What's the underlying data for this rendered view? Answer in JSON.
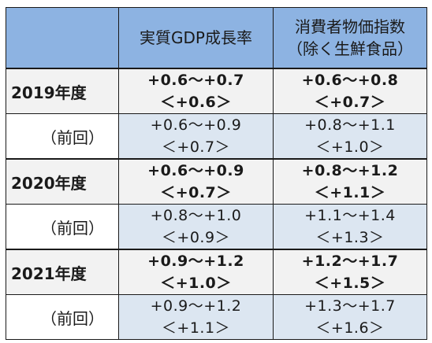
{
  "header": {
    "col_empty": "",
    "col_gdp": "実質GDP成長率",
    "col_cpi_line1": "消費者物価指数",
    "col_cpi_line2": "（除く生鮮食品）"
  },
  "rows": [
    {
      "label": "2019年度",
      "gdp_range": "+0.6～+0.7",
      "gdp_median": "＜+0.6＞",
      "cpi_range": "+0.6～+0.8",
      "cpi_median": "＜+0.7＞"
    },
    {
      "label": "（前回）",
      "gdp_range": "+0.6～+0.9",
      "gdp_median": "＜+0.7＞",
      "cpi_range": "+0.8～+1.1",
      "cpi_median": "＜+1.0＞"
    },
    {
      "label": "2020年度",
      "gdp_range": "+0.6～+0.9",
      "gdp_median": "＜+0.7＞",
      "cpi_range": "+0.8～+1.2",
      "cpi_median": "＜+1.1＞"
    },
    {
      "label": "（前回）",
      "gdp_range": "+0.8～+1.0",
      "gdp_median": "＜+0.9＞",
      "cpi_range": "+1.1～+1.4",
      "cpi_median": "＜+1.3＞"
    },
    {
      "label": "2021年度",
      "gdp_range": "+0.9～+1.2",
      "gdp_median": "＜+1.0＞",
      "cpi_range": "+1.2～+1.7",
      "cpi_median": "＜+1.5＞"
    },
    {
      "label": "（前回）",
      "gdp_range": "+0.9～+1.2",
      "gdp_median": "＜+1.1＞",
      "cpi_range": "+1.3～+1.7",
      "cpi_median": "＜+1.6＞"
    }
  ],
  "colors": {
    "header_bg": "#8db3e2",
    "current_row_bg": "#f2f2f2",
    "previous_row_bg": "#dce6f1"
  }
}
